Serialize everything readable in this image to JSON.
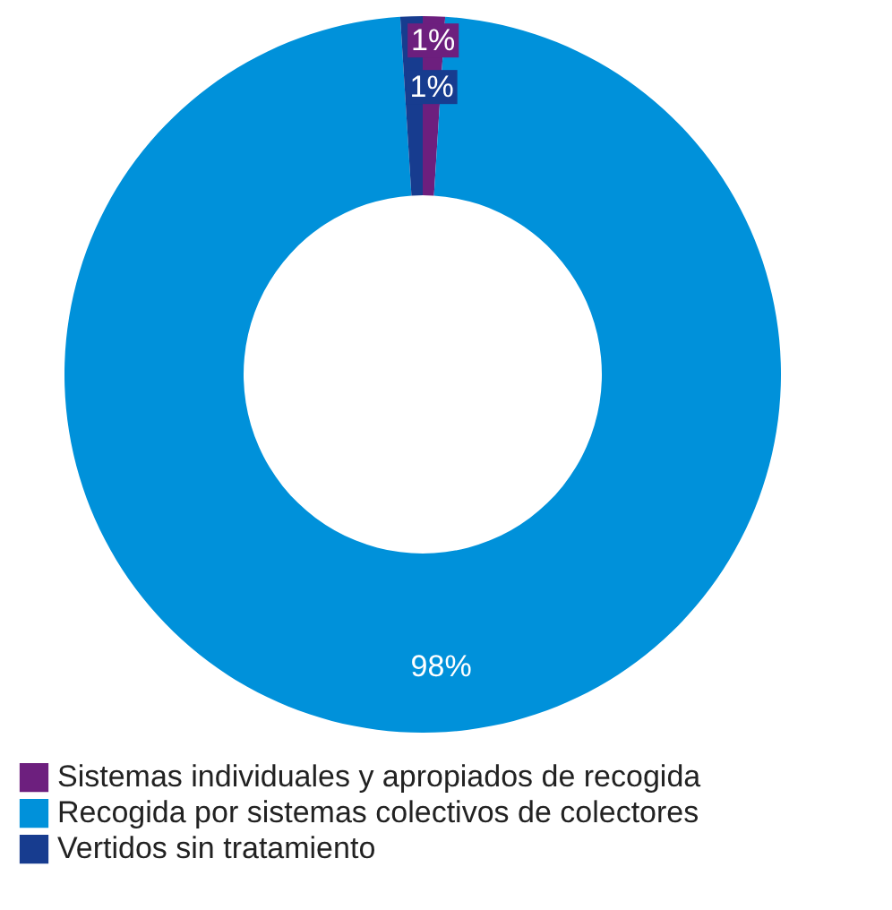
{
  "chart_data": {
    "type": "donut",
    "categories": [
      "Sistemas individuales y apropiados de recogida",
      "Recogida por sistemas colectivos de colectores",
      "Vertidos sin tratamiento"
    ],
    "values": [
      1,
      98,
      1
    ],
    "colors": [
      "#6d1f7e",
      "#0091da",
      "#173c8f"
    ],
    "value_labels": [
      "1%",
      "98%",
      "1%"
    ],
    "legend": "bottom"
  }
}
